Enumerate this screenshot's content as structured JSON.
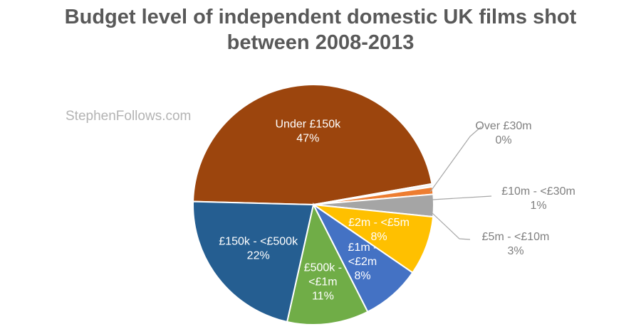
{
  "watermark": "StephenFollows.com",
  "chart_data": {
    "type": "pie",
    "title_lines": [
      "Budget level of independent domestic UK films shot",
      "between 2008-2013"
    ],
    "slices": [
      {
        "label": "Under £150k",
        "value": 47,
        "value_label": "47%",
        "color": "#9C450D"
      },
      {
        "label": "Over £30m",
        "value": 0.4,
        "value_label": "0%",
        "color": "#F2F2F2"
      },
      {
        "label": "£10m - <£30m",
        "value": 1,
        "value_label": "1%",
        "color": "#ED7D31"
      },
      {
        "label": "£5m - <£10m",
        "value": 3,
        "value_label": "3%",
        "color": "#A5A5A5"
      },
      {
        "label": "£2m - <£5m",
        "value": 8,
        "value_label": "8%",
        "color": "#FFC000"
      },
      {
        "label": "£1m - <£2m",
        "value": 8,
        "value_label": "8%",
        "color": "#4472C4"
      },
      {
        "label": "£500k - <£1m",
        "value": 11,
        "value_label": "11%",
        "color": "#70AD47"
      },
      {
        "label": "£150k - <£500k",
        "value": 22,
        "value_label": "22%",
        "color": "#255E91"
      }
    ]
  }
}
